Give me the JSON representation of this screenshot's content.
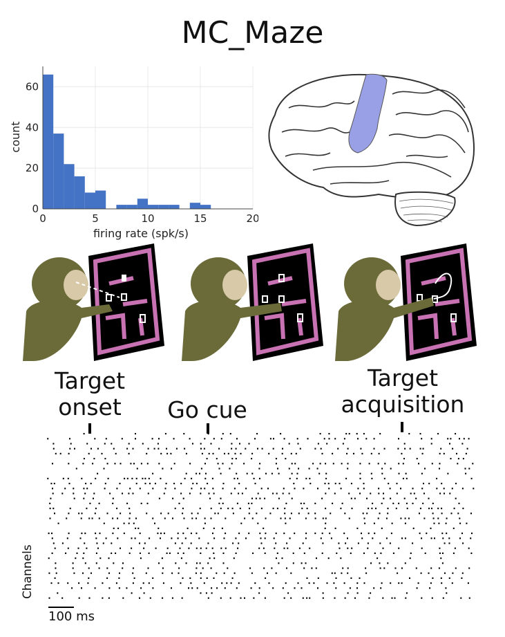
{
  "title": "MC_Maze",
  "chart_data": {
    "type": "bar",
    "xlabel": "firing rate (spk/s)",
    "ylabel": "count",
    "xlim": [
      0,
      20
    ],
    "ylim": [
      0,
      70
    ],
    "xticks": [
      "0",
      "5",
      "10",
      "15",
      "20"
    ],
    "yticks": [
      "0",
      "20",
      "40",
      "60"
    ],
    "bin_width": 1,
    "bins": [
      {
        "x0": 0,
        "count": 66
      },
      {
        "x0": 1,
        "count": 37
      },
      {
        "x0": 2,
        "count": 22
      },
      {
        "x0": 3,
        "count": 16
      },
      {
        "x0": 4,
        "count": 8
      },
      {
        "x0": 5,
        "count": 9
      },
      {
        "x0": 6,
        "count": 0
      },
      {
        "x0": 7,
        "count": 2
      },
      {
        "x0": 8,
        "count": 2
      },
      {
        "x0": 9,
        "count": 5
      },
      {
        "x0": 10,
        "count": 2
      },
      {
        "x0": 11,
        "count": 2
      },
      {
        "x0": 12,
        "count": 2
      },
      {
        "x0": 13,
        "count": 0
      },
      {
        "x0": 14,
        "count": 3
      },
      {
        "x0": 15,
        "count": 2
      }
    ],
    "bar_color": "#4472c4",
    "grid": true
  },
  "brain": {
    "region_color": "#9aa0e6"
  },
  "colors": {
    "maze_wall": "#c872b4",
    "monkey": "#6b6b3a"
  },
  "events": {
    "target_onset": [
      "Target",
      "onset"
    ],
    "go_cue": "Go cue",
    "target_acquisition": [
      "Target",
      "acquisition"
    ]
  },
  "raster": {
    "ylabel": "Channels",
    "scale_label": "100 ms"
  }
}
